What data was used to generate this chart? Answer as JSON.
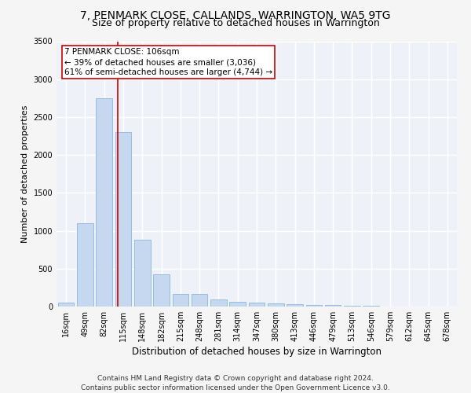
{
  "title": "7, PENMARK CLOSE, CALLANDS, WARRINGTON, WA5 9TG",
  "subtitle": "Size of property relative to detached houses in Warrington",
  "xlabel": "Distribution of detached houses by size in Warrington",
  "ylabel": "Number of detached properties",
  "bar_categories": [
    "16sqm",
    "49sqm",
    "82sqm",
    "115sqm",
    "148sqm",
    "182sqm",
    "215sqm",
    "248sqm",
    "281sqm",
    "314sqm",
    "347sqm",
    "380sqm",
    "413sqm",
    "446sqm",
    "479sqm",
    "513sqm",
    "546sqm",
    "579sqm",
    "612sqm",
    "645sqm",
    "678sqm"
  ],
  "bar_values": [
    50,
    1100,
    2750,
    2300,
    880,
    430,
    170,
    170,
    90,
    65,
    50,
    40,
    28,
    25,
    18,
    12,
    8,
    5,
    3,
    2,
    1
  ],
  "bar_color": "#c5d8f0",
  "bar_edgecolor": "#7aafd4",
  "bg_color": "#eef2f8",
  "grid_color": "#ffffff",
  "vline_color": "#cc0000",
  "annotation_text": "7 PENMARK CLOSE: 106sqm\n← 39% of detached houses are smaller (3,036)\n61% of semi-detached houses are larger (4,744) →",
  "annotation_box_color": "#cc0000",
  "ylim": [
    0,
    3500
  ],
  "yticks": [
    0,
    500,
    1000,
    1500,
    2000,
    2500,
    3000,
    3500
  ],
  "footer": "Contains HM Land Registry data © Crown copyright and database right 2024.\nContains public sector information licensed under the Open Government Licence v3.0.",
  "title_fontsize": 10,
  "subtitle_fontsize": 9,
  "xlabel_fontsize": 8.5,
  "ylabel_fontsize": 8,
  "tick_fontsize": 7,
  "footer_fontsize": 6.5,
  "annotation_fontsize": 7.5
}
